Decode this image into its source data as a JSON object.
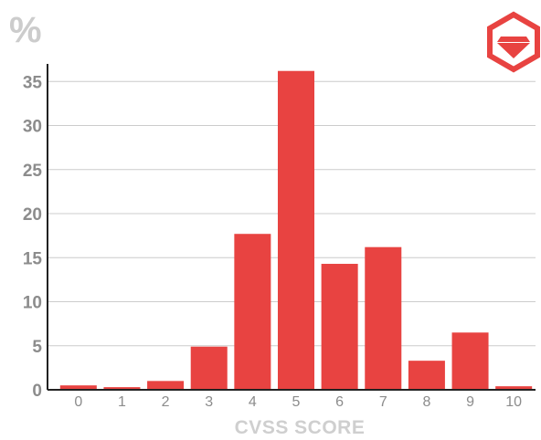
{
  "chart_data": {
    "type": "bar",
    "categories": [
      "0",
      "1",
      "2",
      "3",
      "4",
      "5",
      "6",
      "7",
      "8",
      "9",
      "10"
    ],
    "values": [
      0.5,
      0.3,
      1.0,
      4.9,
      17.7,
      36.2,
      14.3,
      16.2,
      3.3,
      6.5,
      0.4
    ],
    "ylabel": "%",
    "xlabel": "CVSS SCORE",
    "ylim": [
      0,
      37
    ],
    "yticks": [
      0,
      5,
      10,
      15,
      20,
      25,
      30,
      35
    ],
    "grid": true,
    "legend": "none",
    "bar_color": "#e84341",
    "grid_color": "#cccccc",
    "axis_color": "#222222"
  },
  "logo": {
    "icon": "ruby-gem-hexagon-icon",
    "color": "#e84341"
  }
}
